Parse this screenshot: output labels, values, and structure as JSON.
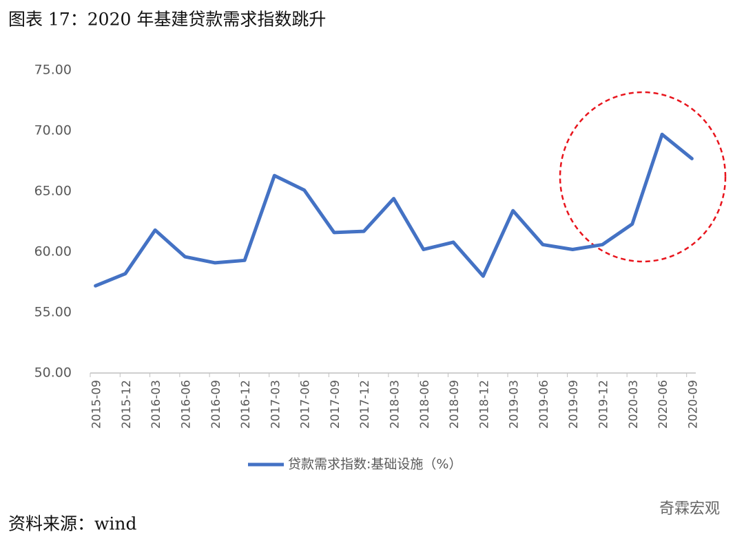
{
  "chart_data": {
    "type": "line",
    "title": "图表 17：2020 年基建贷款需求指数跳升",
    "categories": [
      "2015-09",
      "2015-12",
      "2016-03",
      "2016-06",
      "2016-09",
      "2016-12",
      "2017-03",
      "2017-06",
      "2017-09",
      "2017-12",
      "2018-03",
      "2018-06",
      "2018-09",
      "2018-12",
      "2019-03",
      "2019-06",
      "2019-09",
      "2019-12",
      "2020-03",
      "2020-06",
      "2020-09"
    ],
    "series": [
      {
        "name": "贷款需求指数:基础设施（%）",
        "color": "#4472c4",
        "values": [
          57.2,
          58.2,
          61.8,
          59.6,
          59.1,
          59.3,
          66.3,
          65.1,
          61.6,
          61.7,
          64.4,
          60.2,
          60.8,
          58.0,
          63.4,
          60.6,
          60.2,
          60.6,
          62.3,
          69.7,
          67.7
        ]
      }
    ],
    "ylim": [
      50,
      75
    ],
    "yticks": [
      {
        "value": 50,
        "label": "50.00"
      },
      {
        "value": 55,
        "label": "55.00"
      },
      {
        "value": 60,
        "label": "60.00"
      },
      {
        "value": 65,
        "label": "65.00"
      },
      {
        "value": 70,
        "label": "70.00"
      },
      {
        "value": 75,
        "label": "75.00"
      }
    ],
    "grid": false,
    "legend": "bottom"
  },
  "source": "资料来源：wind",
  "watermark": "奇霖宏观"
}
